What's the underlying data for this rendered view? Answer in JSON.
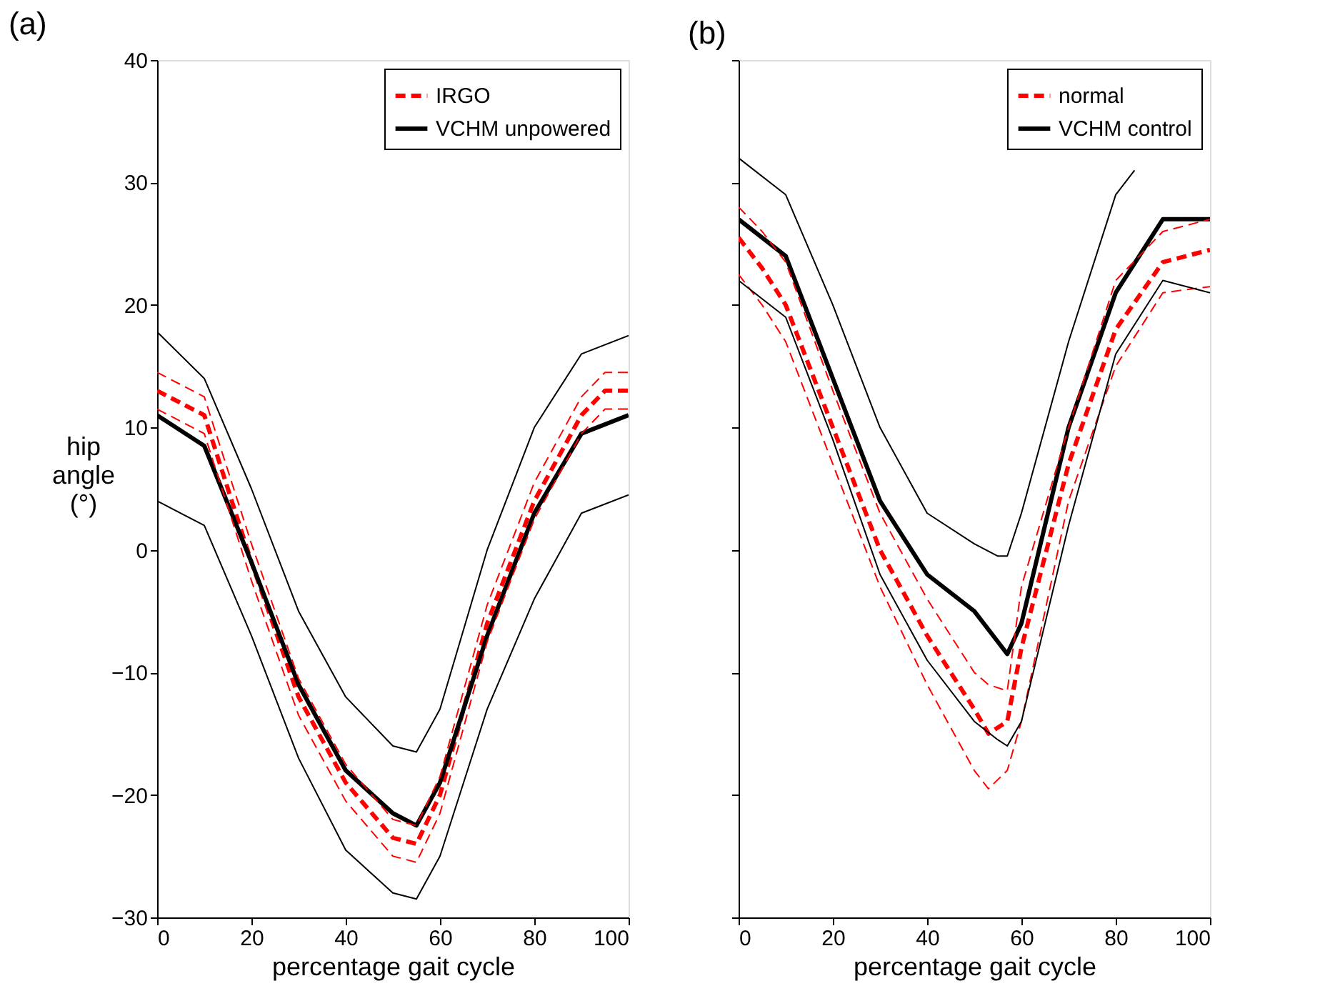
{
  "chart_data": [
    {
      "type": "line",
      "title": "(a)",
      "xlabel": "percentage gait cycle",
      "ylabel": "hip angle (°)",
      "xlim": [
        0,
        100
      ],
      "xticks": [
        0,
        20,
        40,
        60,
        80,
        100
      ],
      "ylim": [
        -30,
        40
      ],
      "yticks": [
        -30,
        -20,
        -10,
        0,
        10,
        20,
        30,
        40
      ],
      "grid": false,
      "legend": "top right",
      "series": [
        {
          "name": "IRGO",
          "color": "#ff0000",
          "line_style": "dashed",
          "x": [
            0,
            10,
            20,
            30,
            40,
            50,
            55,
            60,
            70,
            80,
            90,
            95,
            100
          ],
          "values": [
            13,
            11,
            -1,
            -12,
            -19,
            -23.5,
            -24,
            -20,
            -6,
            4,
            11,
            13,
            13
          ]
        },
        {
          "name": "VCHM unpowered",
          "color": "#000000",
          "line_style": "solid",
          "x": [
            0,
            10,
            20,
            30,
            40,
            50,
            55,
            60,
            70,
            80,
            90,
            100
          ],
          "values": [
            11,
            8.5,
            -1,
            -11,
            -18,
            -21.5,
            -22.5,
            -19,
            -7,
            3,
            9.5,
            11
          ]
        },
        {
          "color": "#ff0000",
          "line_style": "dashed",
          "x": [
            0,
            10,
            20,
            30,
            40,
            50,
            55,
            60,
            70,
            80,
            90,
            95,
            100
          ],
          "values": [
            14.5,
            12.5,
            0.5,
            -10.5,
            -17.5,
            -22,
            -22.5,
            -18.5,
            -4.5,
            5.5,
            12.5,
            14.5,
            14.5
          ]
        },
        {
          "color": "#ff0000",
          "line_style": "dashed",
          "x": [
            0,
            10,
            20,
            30,
            40,
            50,
            55,
            60,
            70,
            80,
            90,
            95,
            100
          ],
          "values": [
            11.5,
            9.5,
            -2.5,
            -13.5,
            -20.5,
            -25,
            -25.5,
            -21.5,
            -7.5,
            2.5,
            9.5,
            11.5,
            11.5
          ]
        },
        {
          "color": "#000000",
          "line_style": "solid",
          "x": [
            0,
            10,
            20,
            30,
            40,
            50,
            55,
            60,
            70,
            80,
            90,
            100
          ],
          "values": [
            17.8,
            14,
            5,
            -5,
            -12,
            -16,
            -16.5,
            -13,
            0,
            10,
            16,
            17.5
          ]
        },
        {
          "color": "#000000",
          "line_style": "solid",
          "x": [
            0,
            10,
            20,
            30,
            40,
            50,
            55,
            60,
            70,
            80,
            90,
            100
          ],
          "values": [
            4,
            2,
            -7,
            -17,
            -24.5,
            -28,
            -28.5,
            -25,
            -13,
            -4,
            3,
            4.5
          ]
        }
      ]
    },
    {
      "type": "line",
      "title": "(b)",
      "xlabel": "percentage gait cycle",
      "xlim": [
        0,
        100
      ],
      "xticks": [
        0,
        20,
        40,
        60,
        80,
        100
      ],
      "ylim": [
        -30,
        40
      ],
      "yticks": [
        -30,
        -20,
        -10,
        0,
        10,
        20,
        30,
        40
      ],
      "tick_labels": "x",
      "grid": false,
      "legend": "top right",
      "series": [
        {
          "name": "normal",
          "color": "#ff0000",
          "line_style": "dashed",
          "x": [
            0,
            5,
            10,
            20,
            30,
            40,
            50,
            53,
            57,
            60,
            70,
            80,
            90,
            100
          ],
          "values": [
            25.5,
            23,
            20,
            10,
            0,
            -7,
            -13,
            -15,
            -14,
            -8,
            7,
            18,
            23.5,
            24.5
          ]
        },
        {
          "name": "VCHM control",
          "color": "#000000",
          "line_style": "solid",
          "x": [
            0,
            10,
            20,
            30,
            40,
            50,
            55,
            57,
            60,
            70,
            80,
            90,
            100
          ],
          "values": [
            27,
            24,
            14,
            4,
            -2,
            -5,
            -7.5,
            -8.5,
            -6,
            10,
            21,
            27,
            27
          ]
        },
        {
          "color": "#ff0000",
          "line_style": "dashed",
          "x": [
            0,
            5,
            10,
            20,
            30,
            40,
            50,
            53,
            57,
            60,
            70,
            80,
            90,
            100
          ],
          "values": [
            28,
            26,
            23.5,
            13,
            3,
            -4,
            -10,
            -11,
            -11.5,
            -3,
            10,
            22,
            26,
            27
          ]
        },
        {
          "color": "#ff0000",
          "line_style": "dashed",
          "x": [
            0,
            5,
            10,
            20,
            30,
            40,
            50,
            53,
            57,
            60,
            70,
            80,
            90,
            100
          ],
          "values": [
            22.5,
            20,
            17,
            7,
            -3,
            -11,
            -18,
            -19.5,
            -18,
            -14,
            4,
            15,
            21,
            21.5
          ]
        },
        {
          "color": "#000000",
          "line_style": "solid",
          "x": [
            0,
            10,
            20,
            30,
            40,
            50,
            55,
            57,
            60,
            70,
            80,
            84
          ],
          "values": [
            32,
            29,
            20,
            10,
            3,
            0.5,
            -0.5,
            -0.5,
            3,
            17,
            29,
            31
          ]
        },
        {
          "color": "#000000",
          "line_style": "solid",
          "x": [
            0,
            10,
            20,
            30,
            40,
            50,
            55,
            57,
            60,
            70,
            80,
            90,
            100
          ],
          "values": [
            22,
            19,
            9,
            -2,
            -9,
            -14,
            -15.5,
            -16,
            -14,
            2,
            16,
            22,
            21
          ]
        }
      ]
    }
  ]
}
